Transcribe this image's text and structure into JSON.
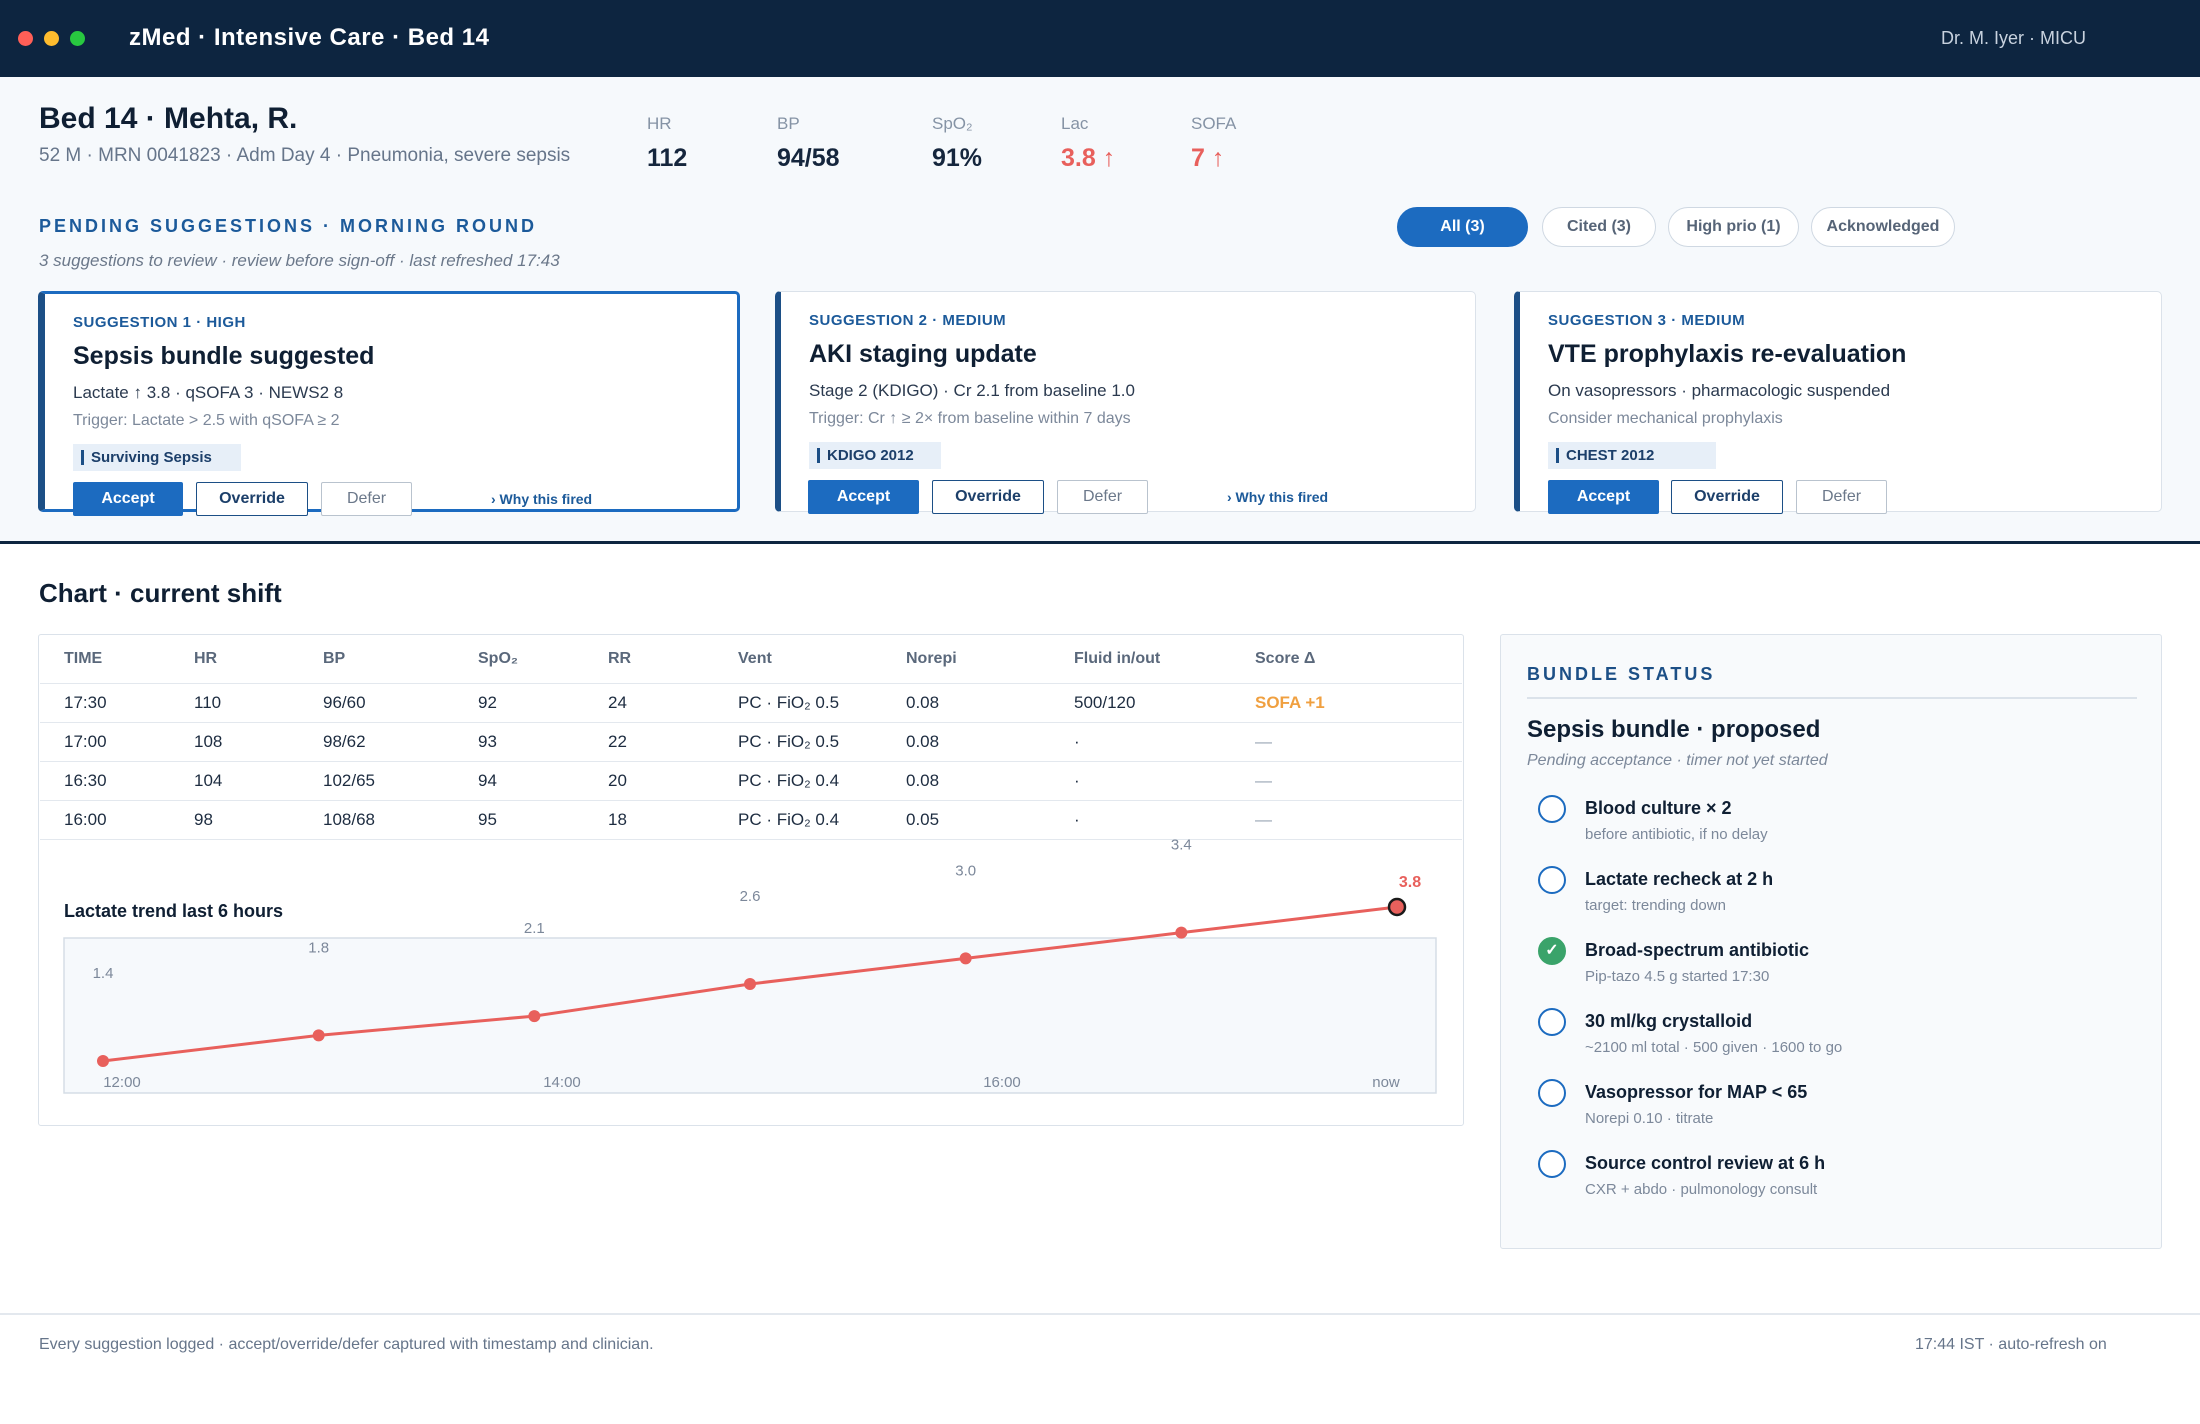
{
  "window": {
    "title": "zMed · Intensive Care · Bed 14",
    "user": "Dr. M. Iyer · MICU",
    "dots": [
      "#ff5f57",
      "#febc2e",
      "#28c840"
    ]
  },
  "patient": {
    "name": "Bed 14 · Mehta, R.",
    "meta": "52 M · MRN 0041823 · Adm Day 4 · Pneumonia, severe sepsis",
    "vitals": [
      {
        "label": "HR",
        "value": "112",
        "alert": false
      },
      {
        "label": "BP",
        "value": "94/58",
        "alert": false
      },
      {
        "label": "SpO₂",
        "value": "91%",
        "alert": false
      },
      {
        "label": "Lac",
        "value": "3.8 ↑",
        "alert": true
      },
      {
        "label": "SOFA",
        "value": "7 ↑",
        "alert": true
      }
    ]
  },
  "suggestions": {
    "title": "PENDING SUGGESTIONS · MORNING ROUND",
    "subtitle": "3 suggestions to review · review before sign-off · last refreshed 17:43",
    "filters": [
      "All (3)",
      "Cited (3)",
      "High prio (1)",
      "Acknowledged"
    ],
    "active_filter": 0,
    "cards": [
      {
        "tag": "SUGGESTION 1 · HIGH",
        "title": "Sepsis bundle suggested",
        "line": "Lactate ↑ 3.8 · qSOFA 3 · NEWS2 8",
        "trigger": "Trigger: Lactate > 2.5 with qSOFA ≥ 2",
        "ref": "Surviving Sepsis",
        "accept": "Accept",
        "override": "Override",
        "defer": "Defer",
        "why": "› Why this fired"
      },
      {
        "tag": "SUGGESTION 2 · MEDIUM",
        "title": "AKI staging update",
        "line": "Stage 2 (KDIGO) · Cr 2.1 from baseline 1.0",
        "trigger": "Trigger: Cr ↑ ≥ 2× from baseline within 7 days",
        "ref": "KDIGO 2012",
        "accept": "Accept",
        "override": "Override",
        "defer": "Defer",
        "why": "› Why this fired"
      },
      {
        "tag": "SUGGESTION 3 · MEDIUM",
        "title": "VTE prophylaxis re-evaluation",
        "line": "On vasopressors · pharmacologic suspended",
        "trigger": "Consider mechanical prophylaxis",
        "ref": "CHEST 2012",
        "accept": "Accept",
        "override": "Override",
        "defer": "Defer"
      }
    ]
  },
  "chart": {
    "title": "Chart · current shift",
    "columns": [
      "TIME",
      "HR",
      "BP",
      "SpO₂",
      "RR",
      "Vent",
      "Norepi",
      "Fluid in/out",
      "Score Δ"
    ],
    "rows": [
      [
        "17:30",
        "110",
        "96/60",
        "92",
        "24",
        "PC · FiO₂ 0.5",
        "0.08",
        "500/120",
        "SOFA +1"
      ],
      [
        "17:00",
        "108",
        "98/62",
        "93",
        "22",
        "PC · FiO₂ 0.5",
        "0.08",
        "·",
        "—"
      ],
      [
        "16:30",
        "104",
        "102/65",
        "94",
        "20",
        "PC · FiO₂ 0.4",
        "0.08",
        "·",
        "—"
      ],
      [
        "16:00",
        "98",
        "108/68",
        "95",
        "18",
        "PC · FiO₂ 0.4",
        "0.05",
        "·",
        "—"
      ]
    ],
    "score_color": "#f0a040"
  },
  "chart_data": {
    "type": "line",
    "title": "Lactate trend last 6 hours",
    "x_tick_labels": [
      "12:00",
      "14:00",
      "16:00",
      "now"
    ],
    "series": [
      {
        "values": [
          1.4,
          1.8,
          2.1,
          2.6,
          3.0,
          3.4,
          3.8
        ],
        "color": "#e8605c"
      }
    ],
    "last_point_label": "3.8",
    "grid": false
  },
  "bundle": {
    "header": "BUNDLE STATUS",
    "title": "Sepsis bundle · proposed",
    "subtitle": "Pending acceptance · timer not yet started",
    "items": [
      {
        "label": "Blood culture × 2",
        "sub": "before antibiotic, if no delay",
        "done": false
      },
      {
        "label": "Lactate recheck at 2 h",
        "sub": "target: trending down",
        "done": false
      },
      {
        "label": "Broad-spectrum antibiotic",
        "sub": "Pip-tazo 4.5 g started 17:30",
        "done": true
      },
      {
        "label": "30 ml/kg crystalloid",
        "sub": "~2100 ml total · 500 given · 1600 to go",
        "done": false
      },
      {
        "label": "Vasopressor for MAP < 65",
        "sub": "Norepi 0.10 · titrate",
        "done": false
      },
      {
        "label": "Source control review at 6 h",
        "sub": "CXR + abdo · pulmonology consult",
        "done": false
      }
    ]
  },
  "footer": {
    "left": "Every suggestion logged · accept/override/defer captured with timestamp and clinician.",
    "right": "17:44 IST · auto-refresh on"
  }
}
